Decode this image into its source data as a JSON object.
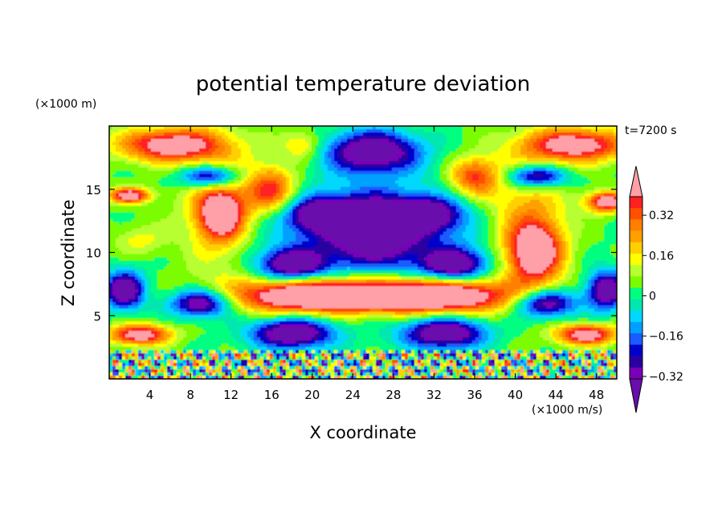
{
  "chart_data": {
    "type": "heatmap",
    "title": "potential temperature deviation",
    "xlabel": "X coordinate",
    "ylabel": "Z coordinate",
    "x_unit": "(×1000 m/s)",
    "y_unit": "(×1000 m)",
    "time_label": "t=7200 s",
    "xlim": [
      0,
      50
    ],
    "ylim": [
      0,
      20
    ],
    "x_ticks": [
      4,
      8,
      12,
      16,
      20,
      24,
      28,
      32,
      36,
      40,
      44,
      48
    ],
    "y_ticks": [
      5,
      10,
      15
    ],
    "colorbar": {
      "levels": [
        -0.4,
        -0.36,
        -0.32,
        -0.28,
        -0.24,
        -0.2,
        -0.16,
        -0.12,
        -0.08,
        -0.04,
        0,
        0.04,
        0.08,
        0.12,
        0.16,
        0.2,
        0.24,
        0.28,
        0.32,
        0.36,
        0.4
      ],
      "colors": [
        "#6a0dad",
        "#7a00b8",
        "#2a00a0",
        "#0000cc",
        "#1a5cff",
        "#00a0ff",
        "#00d8ff",
        "#00e8b0",
        "#00ff80",
        "#7cfc00",
        "#b8ff30",
        "#ffff00",
        "#ffd000",
        "#ffa000",
        "#ff8000",
        "#ff5000",
        "#ff2020",
        "#ff9fa8"
      ],
      "tick_labels": [
        "0.32",
        "0.16",
        "0",
        "−0.16",
        "−0.32"
      ],
      "tick_values": [
        0.32,
        0.16,
        0,
        -0.16,
        -0.32
      ],
      "extend": "both"
    },
    "regions": [
      {
        "x": 26,
        "z": 18,
        "sx": 4.5,
        "sy": 1.6,
        "v": -0.4
      },
      {
        "x": 26,
        "z": 12,
        "sx": 4,
        "sy": 2.2,
        "v": -0.38
      },
      {
        "x": 21,
        "z": 13,
        "sx": 3.2,
        "sy": 1.2,
        "v": -0.36
      },
      {
        "x": 31,
        "z": 13,
        "sx": 3.2,
        "sy": 1.2,
        "v": -0.36
      },
      {
        "x": 18,
        "z": 9,
        "sx": 3.2,
        "sy": 1.2,
        "v": -0.34
      },
      {
        "x": 34,
        "z": 9,
        "sx": 3.2,
        "sy": 1.2,
        "v": -0.34
      },
      {
        "x": 26,
        "z": 11,
        "sx": 12,
        "sy": 4.5,
        "v": -0.2
      },
      {
        "x": 20,
        "z": 6.5,
        "sx": 7,
        "sy": 1.2,
        "v": 0.4
      },
      {
        "x": 32,
        "z": 6.5,
        "sx": 7,
        "sy": 1.2,
        "v": 0.4
      },
      {
        "x": 26,
        "z": 6.8,
        "sx": 14,
        "sy": 1.6,
        "v": 0.25
      },
      {
        "x": 18,
        "z": 3.6,
        "sx": 4,
        "sy": 1.2,
        "v": -0.4
      },
      {
        "x": 33,
        "z": 3.6,
        "sx": 4,
        "sy": 1.2,
        "v": -0.4
      },
      {
        "x": 11,
        "z": 13,
        "sx": 2,
        "sy": 1.8,
        "v": 0.38
      },
      {
        "x": 16,
        "z": 15,
        "sx": 2.5,
        "sy": 1.8,
        "v": 0.3
      },
      {
        "x": 42,
        "z": 10,
        "sx": 2.5,
        "sy": 2.2,
        "v": 0.4
      },
      {
        "x": 36,
        "z": 16,
        "sx": 2.5,
        "sy": 1.5,
        "v": 0.3
      },
      {
        "x": 6,
        "z": 18.5,
        "sx": 5,
        "sy": 1.3,
        "v": 0.4
      },
      {
        "x": 46,
        "z": 18.5,
        "sx": 5,
        "sy": 1.3,
        "v": 0.4
      },
      {
        "x": 10,
        "z": 16,
        "sx": 3,
        "sy": 0.9,
        "v": -0.36
      },
      {
        "x": 42,
        "z": 16,
        "sx": 3,
        "sy": 0.9,
        "v": -0.36
      },
      {
        "x": 9,
        "z": 6,
        "sx": 3,
        "sy": 1.1,
        "v": -0.4
      },
      {
        "x": 43,
        "z": 6,
        "sx": 3,
        "sy": 1.1,
        "v": -0.4
      },
      {
        "x": 1.5,
        "z": 7,
        "sx": 2,
        "sy": 1.5,
        "v": -0.4
      },
      {
        "x": 49,
        "z": 7,
        "sx": 2,
        "sy": 1.5,
        "v": -0.4
      },
      {
        "x": 3,
        "z": 3.5,
        "sx": 3,
        "sy": 0.8,
        "v": 0.4
      },
      {
        "x": 47,
        "z": 3.5,
        "sx": 3,
        "sy": 0.8,
        "v": 0.4
      },
      {
        "x": 2,
        "z": 14.5,
        "sx": 2,
        "sy": 0.6,
        "v": 0.4
      },
      {
        "x": 49,
        "z": 14,
        "sx": 2,
        "sy": 0.8,
        "v": 0.4
      },
      {
        "x": 3,
        "z": 11,
        "sx": 2.5,
        "sy": 1.2,
        "v": 0.1
      },
      {
        "x": 19,
        "z": 18.5,
        "sx": 2,
        "sy": 1.2,
        "v": 0.15
      },
      {
        "x": 11,
        "z": 13.5,
        "sx": 4,
        "sy": 5,
        "v": 0.2
      },
      {
        "x": 41,
        "z": 12.5,
        "sx": 4,
        "sy": 5,
        "v": 0.2
      }
    ]
  }
}
